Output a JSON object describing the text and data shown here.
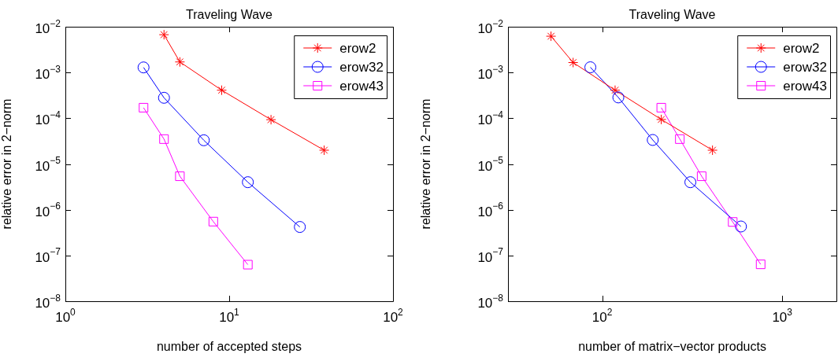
{
  "chart_data": [
    {
      "type": "line",
      "title": "Traveling Wave",
      "xlabel": "number of accepted steps",
      "ylabel": "relative error in 2−norm",
      "log": "xy",
      "grid": false,
      "legend": "top right",
      "line_style": "solid",
      "xlim": [
        1,
        100
      ],
      "xticks": [
        {
          "value": 1,
          "label": "10$^{0}$"
        },
        {
          "value": 10,
          "label": "10$^{1}$"
        },
        {
          "value": 100,
          "label": "10$^{2}$"
        }
      ],
      "ylim": [
        1e-08,
        0.01
      ],
      "yticks": [
        {
          "value": 1e-08,
          "label": "10$^{−8}$"
        },
        {
          "value": 1e-07,
          "label": "10$^{−7}$"
        },
        {
          "value": 1e-06,
          "label": "10$^{−6}$"
        },
        {
          "value": 1e-05,
          "label": "10$^{−5}$"
        },
        {
          "value": 0.0001,
          "label": "10$^{−4}$"
        },
        {
          "value": 0.001,
          "label": "10$^{−3}$"
        },
        {
          "value": 0.01,
          "label": "10$^{−2}$"
        }
      ],
      "series": [
        {
          "name": "erow2",
          "color": "#ff0000",
          "marker": "cross",
          "x": [
            4,
            5,
            9,
            18,
            38
          ],
          "values": [
            0.0067,
            0.0017,
            0.00041,
            9.3e-05,
            2e-05
          ]
        },
        {
          "name": "erow32",
          "color": "#0000ff",
          "marker": "circle",
          "x": [
            3,
            4,
            7,
            13,
            27
          ],
          "values": [
            0.00129,
            0.00028,
            3.3e-05,
            4e-06,
            4.2e-07
          ]
        },
        {
          "name": "erow43",
          "color": "#ff00ff",
          "marker": "square",
          "x": [
            3,
            4,
            5,
            8,
            13
          ],
          "values": [
            0.00017,
            3.5e-05,
            5.4e-06,
            5.5e-07,
            6.3e-08
          ]
        }
      ]
    },
    {
      "type": "line",
      "title": "Traveling Wave",
      "xlabel": "number of matrix−vector products",
      "ylabel": "relative error in 2−norm",
      "log": "xy",
      "grid": false,
      "legend": "top right",
      "line_style": "solid",
      "xlim": [
        30,
        2000
      ],
      "xticks": [
        {
          "value": 100,
          "label": "10$^{2}$"
        },
        {
          "value": 1000,
          "label": "10$^{3}$"
        }
      ],
      "ylim": [
        1e-08,
        0.01
      ],
      "yticks": [
        {
          "value": 1e-08,
          "label": "10$^{−8}$"
        },
        {
          "value": 1e-07,
          "label": "10$^{−7}$"
        },
        {
          "value": 1e-06,
          "label": "10$^{−6}$"
        },
        {
          "value": 1e-05,
          "label": "10$^{−5}$"
        },
        {
          "value": 0.0001,
          "label": "10$^{−4}$"
        },
        {
          "value": 0.001,
          "label": "10$^{−3}$"
        },
        {
          "value": 0.01,
          "label": "10$^{−2}$"
        }
      ],
      "series": [
        {
          "name": "erow2",
          "color": "#ff0000",
          "marker": "cross",
          "x": [
            52,
            69,
            118,
            213,
            410
          ],
          "values": [
            0.0062,
            0.00165,
            0.00041,
            9.4e-05,
            2e-05
          ]
        },
        {
          "name": "erow32",
          "color": "#0000ff",
          "marker": "circle",
          "x": [
            86,
            123,
            191,
            309,
            590
          ],
          "values": [
            0.0013,
            0.000285,
            3.35e-05,
            4e-06,
            4.3e-07
          ]
        },
        {
          "name": "erow43",
          "color": "#ff00ff",
          "marker": "square",
          "x": [
            213,
            270,
            357,
            531,
            759
          ],
          "values": [
            0.00017,
            3.5e-05,
            5.4e-06,
            5.4e-07,
            6.4e-08
          ]
        }
      ]
    }
  ]
}
